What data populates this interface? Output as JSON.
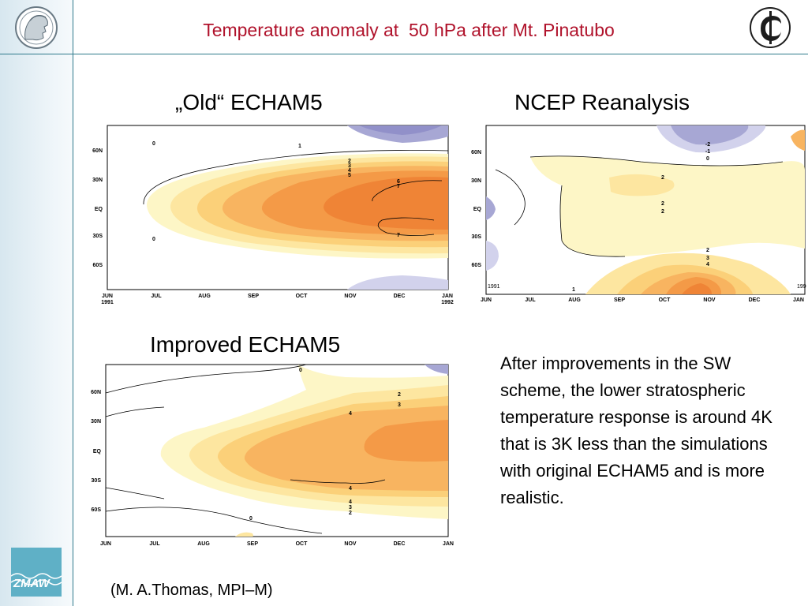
{
  "slide": {
    "title": "Temperature anomaly at  50 hPa after Mt. Pinatubo",
    "description": "After improvements in the SW scheme, the lower stratospheric temperature response is around 4K that is 3K less than the simulations with original ECHAM5 and is more realistic.",
    "credit": "(M. A.Thomas, MPI–M)",
    "logos": {
      "left": "mpi-minerva-logo",
      "right": "institute-logo",
      "bottom": "zmaw-logo",
      "zmaw_text": "ZMAW"
    }
  },
  "panels": {
    "old": {
      "title": "„Old“ ECHAM5",
      "x_ticks": [
        "JUN",
        "JUL",
        "AUG",
        "SEP",
        "OCT",
        "NOV",
        "DEC",
        "JAN"
      ],
      "x_sub": [
        "1991",
        "1992"
      ],
      "y_ticks": [
        "60N",
        "30N",
        "EQ",
        "30S",
        "60S"
      ],
      "labels": [
        "0",
        "1",
        "2",
        "3",
        "4",
        "5",
        "6",
        "7",
        "0",
        "7"
      ]
    },
    "ncep": {
      "title": "NCEP Reanalysis",
      "x_ticks": [
        "JUN",
        "JUL",
        "AUG",
        "SEP",
        "OCT",
        "NOV",
        "DEC",
        "JAN"
      ],
      "x_sub": [
        "1991",
        "199"
      ],
      "y_ticks": [
        "60N",
        "30N",
        "EQ",
        "30S",
        "60S"
      ],
      "labels": [
        "-2",
        "-1",
        "0",
        "2",
        "2",
        "2",
        "2",
        "3",
        "4",
        "1"
      ]
    },
    "improved": {
      "title": "Improved ECHAM5",
      "x_ticks": [
        "JUN",
        "JUL",
        "AUG",
        "SEP",
        "OCT",
        "NOV",
        "DEC",
        "JAN"
      ],
      "y_ticks": [
        "60N",
        "30N",
        "EQ",
        "30S",
        "60S"
      ],
      "labels": [
        "0",
        "2",
        "3",
        "4",
        "4",
        "4",
        "3",
        "2",
        "0"
      ]
    }
  },
  "colors": {
    "title": "#b0122b",
    "accent_line": "#2f7a8c",
    "warm_1": "#fdf6c6",
    "warm_2": "#fde6a0",
    "warm_3": "#fbd079",
    "warm_4": "#f8b460",
    "warm_5": "#f49a47",
    "warm_6": "#ef8436",
    "cold_1": "#d2d2ec",
    "cold_2": "#a7a7d4"
  }
}
